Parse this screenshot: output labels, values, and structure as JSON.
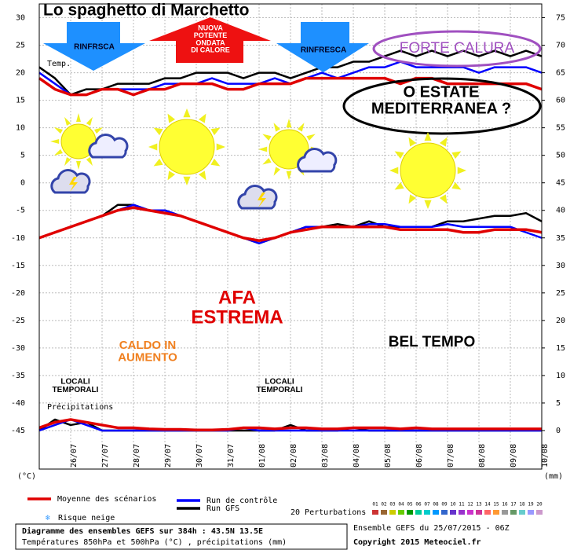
{
  "chart_data": {
    "type": "line",
    "title": "Lo spaghetto di Marchetto",
    "categories": [
      null,
      null,
      "26/07",
      null,
      "27/07",
      null,
      "28/07",
      null,
      "29/07",
      null,
      "30/07",
      null,
      "31/07",
      null,
      "01/08",
      null,
      "02/08",
      null,
      "03/08",
      null,
      "04/08",
      null,
      "05/08",
      null,
      "06/08",
      null,
      "07/08",
      null,
      "08/08",
      null,
      "09/08",
      null,
      "10/08"
    ],
    "ylim": [
      -52,
      32.5
    ],
    "yticks": [
      -45,
      -40,
      -35,
      -30,
      -25,
      -20,
      -15,
      -10,
      -5,
      0,
      5,
      10,
      15,
      20,
      25,
      30
    ],
    "y2lim": [
      -7,
      77.5
    ],
    "y2ticks": [
      0,
      5,
      10,
      15,
      20,
      25,
      30,
      35,
      40,
      45,
      50,
      55,
      60,
      65,
      70,
      75
    ],
    "y_unit": "(°C)",
    "y2_unit": "(mm)",
    "grid": true,
    "panel_labels": [
      "Temp.",
      "Précipitations"
    ],
    "series": [
      {
        "name": "Moyenne des scénarios",
        "color": "#e00000",
        "values": [
          19,
          17,
          16,
          16,
          17,
          17,
          16,
          17,
          17,
          18,
          18,
          18,
          17,
          17,
          18,
          18,
          18,
          19,
          19,
          19,
          19,
          19,
          19,
          18,
          19,
          19,
          18,
          18,
          18,
          18,
          18,
          18,
          17
        ],
        "values_500": [
          -10,
          -9,
          -8,
          -7,
          -6,
          -5,
          -4.5,
          -5,
          -5.5,
          -6,
          -7,
          -8,
          -9,
          -10,
          -10.5,
          -10,
          -9,
          -8.5,
          -8,
          -8,
          -8,
          -8,
          -8,
          -8.5,
          -8.5,
          -8.5,
          -8.5,
          -9,
          -9,
          -8.5,
          -8.5,
          -8.5,
          -9
        ],
        "precipitation": [
          0.5,
          1.5,
          2,
          1.5,
          1,
          0.5,
          0.5,
          0.3,
          0.2,
          0.2,
          0.1,
          0.1,
          0.2,
          0.5,
          0.5,
          0.3,
          0.5,
          0.5,
          0.3,
          0.3,
          0.5,
          0.5,
          0.5,
          0.3,
          0.5,
          0.3,
          0.3,
          0.3,
          0.3,
          0.3,
          0.3,
          0.3,
          0.3
        ]
      },
      {
        "name": "Run de contrôle",
        "color": "#0000ff",
        "values": [
          20,
          18,
          16,
          16,
          17,
          17,
          17,
          17,
          18,
          18,
          18,
          19,
          18,
          18,
          18,
          19,
          18,
          19,
          20,
          19,
          20,
          21,
          21,
          22,
          21,
          21,
          21,
          21,
          20,
          21,
          21,
          21,
          20
        ],
        "values_500": [
          -10,
          -9,
          -8,
          -7,
          -6,
          -5,
          -4,
          -5,
          -5,
          -6,
          -7,
          -8,
          -9,
          -10,
          -11,
          -10,
          -9,
          -8,
          -8,
          -8,
          -8,
          -7.5,
          -7.5,
          -8,
          -8,
          -8,
          -7.5,
          -8,
          -8,
          -8,
          -8,
          -9,
          -10
        ],
        "precipitation": [
          0,
          1,
          2,
          1,
          0,
          0,
          0,
          0,
          0,
          0,
          0,
          0,
          0,
          0.5,
          0,
          0,
          0,
          0,
          0,
          0,
          0,
          0,
          0,
          0,
          0,
          0,
          0,
          0,
          0,
          0,
          0,
          0,
          0
        ]
      },
      {
        "name": "Run GFS",
        "color": "#000000",
        "values": [
          21,
          19,
          16,
          17,
          17,
          18,
          18,
          18,
          19,
          19,
          20,
          20,
          20,
          19,
          20,
          20,
          19,
          20,
          21,
          21,
          22,
          22,
          23,
          24,
          23,
          24,
          23,
          24,
          23,
          24,
          23,
          24,
          23
        ],
        "values_500": [
          -10,
          -9,
          -8,
          -7,
          -6,
          -4,
          -4,
          -5,
          -5,
          -6,
          -7,
          -8,
          -9,
          -10,
          -11,
          -10,
          -9,
          -8,
          -8,
          -7.5,
          -8,
          -7,
          -8,
          -8,
          -8,
          -8,
          -7,
          -7,
          -6.5,
          -6,
          -6,
          -5.5,
          -7
        ],
        "precipitation": [
          0,
          2,
          1,
          1.5,
          0,
          0,
          0,
          0,
          0,
          0,
          0,
          0,
          0,
          0,
          0,
          0,
          1,
          0,
          0,
          0,
          0.5,
          0,
          0,
          0,
          0,
          0,
          0,
          0,
          0,
          0,
          0,
          0,
          0
        ]
      }
    ],
    "perturbations": {
      "label": "20 Perturbations",
      "members": [
        "01",
        "02",
        "03",
        "04",
        "05",
        "06",
        "07",
        "08",
        "09",
        "10",
        "11",
        "12",
        "13",
        "14",
        "15",
        "16",
        "17",
        "18",
        "19",
        "20"
      ],
      "colors": [
        "#cc3333",
        "#996633",
        "#cccc00",
        "#66cc00",
        "#009900",
        "#00cc99",
        "#00cccc",
        "#0099ff",
        "#3366cc",
        "#6633cc",
        "#9933cc",
        "#cc33cc",
        "#cc3399",
        "#ff6666",
        "#ff9933",
        "#999999",
        "#669966",
        "#66cccc",
        "#9999ff",
        "#cc99cc"
      ]
    },
    "snow_risk": "Risque neige",
    "annotations": [
      {
        "lines": [
          "RINFRSCA"
        ]
      },
      {
        "lines": [
          "NUOVA",
          "POTENTE",
          "ONDATA",
          "DI CALORE"
        ]
      },
      {
        "lines": [
          "RINFRESCA"
        ]
      },
      {
        "lines": [
          "FORTE CALURA"
        ]
      },
      {
        "lines": [
          "O ESTATE",
          "MEDITERRANEA ?"
        ]
      },
      {
        "lines": [
          "AFA",
          "ESTREMA"
        ]
      },
      {
        "lines": [
          "CALDO IN",
          "AUMENTO"
        ]
      },
      {
        "lines": [
          "BEL TEMPO"
        ]
      },
      {
        "lines": [
          "LOCALI",
          "TEMPORALI"
        ]
      },
      {
        "lines": [
          "LOCALI",
          "TEMPORALI"
        ]
      }
    ],
    "footer": {
      "left": [
        "Diagramme des ensembles GEFS sur 384h : 43.5N 13.5E",
        "Températures 850hPa et 500hPa (°C) , précipitations (mm)"
      ],
      "right": [
        "Ensemble GEFS du 25/07/2015 - 06Z",
        "Copyright 2015 Meteociel.fr"
      ]
    }
  }
}
